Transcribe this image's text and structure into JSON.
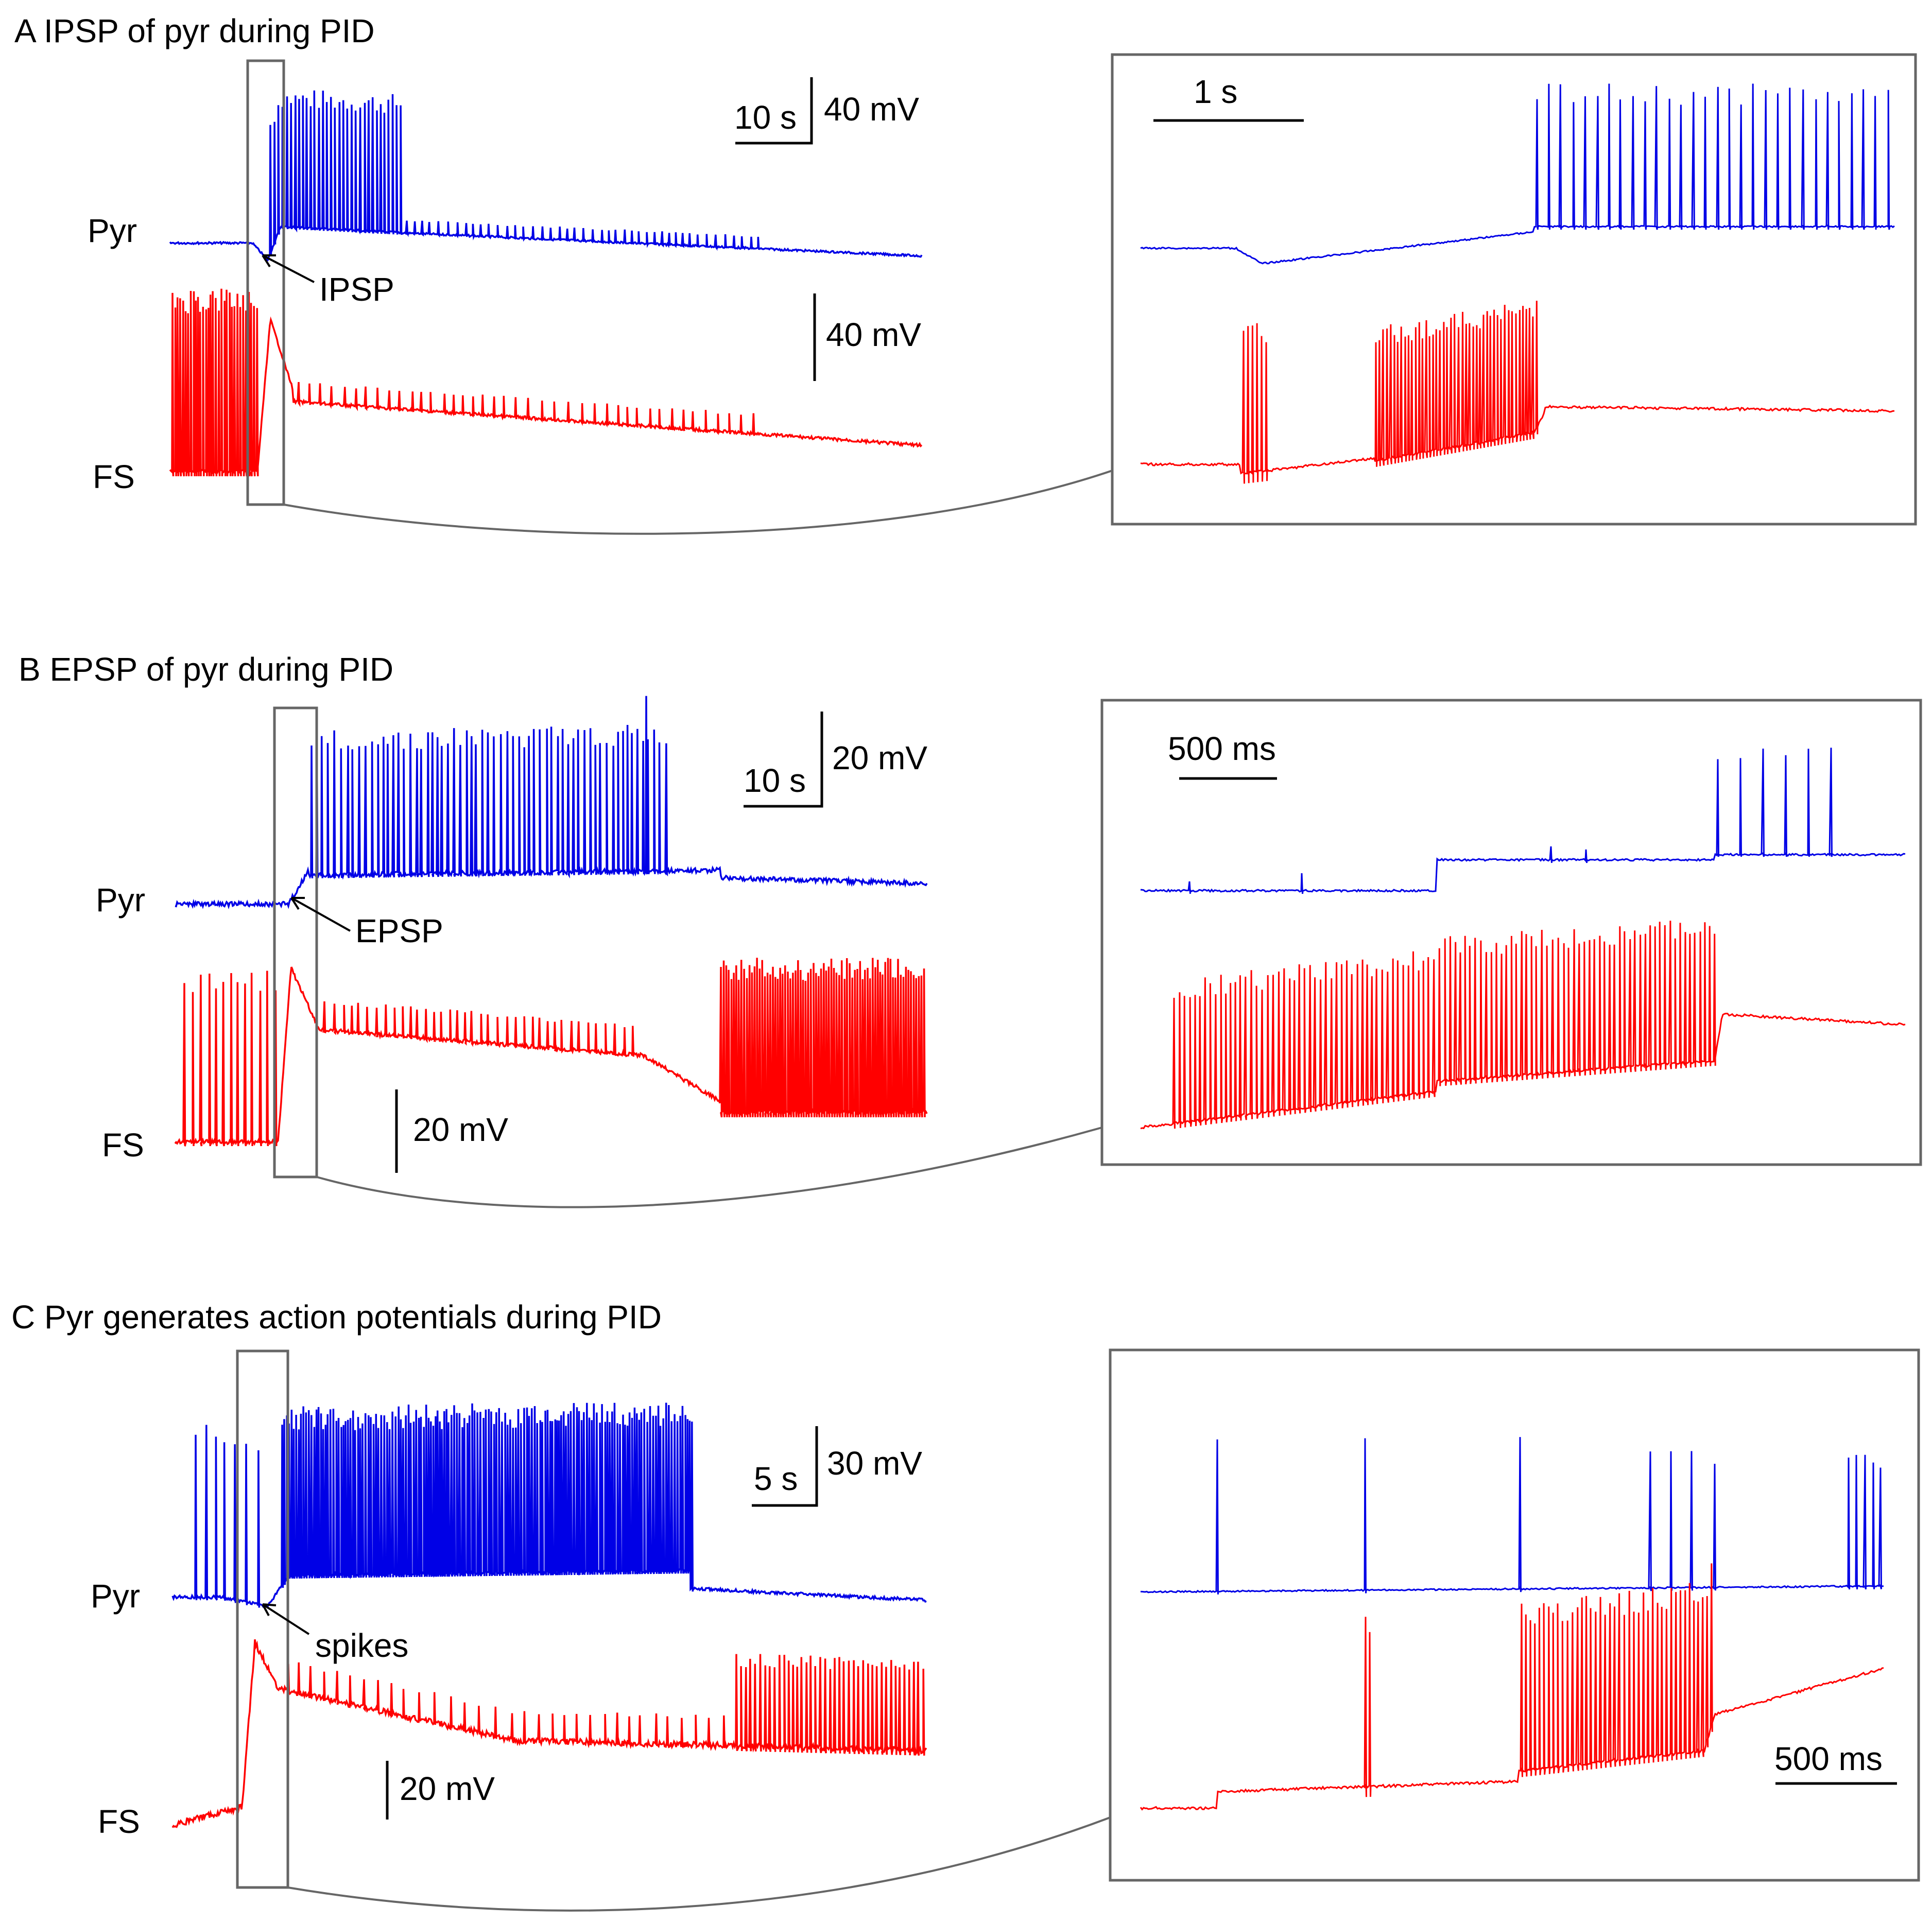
{
  "colors": {
    "pyr": "#0000e6",
    "fs": "#ff0000",
    "frame": "#666666",
    "ink": "#000000"
  },
  "panels": [
    {
      "id": "A",
      "title": "A IPSP of pyr during PID",
      "pyr_label": "Pyr",
      "fs_label": "FS",
      "annotation": "IPSP",
      "overview_scalebar": {
        "time": "10 s",
        "voltage": "40 mV"
      },
      "fs_scalebar": {
        "voltage": "40 mV"
      },
      "inset_scalebar": {
        "time": "1 s"
      }
    },
    {
      "id": "B",
      "title": "B EPSP of pyr during PID",
      "pyr_label": "Pyr",
      "fs_label": "FS",
      "annotation": "EPSP",
      "overview_scalebar": {
        "time": "10 s",
        "voltage": "20 mV"
      },
      "fs_scalebar": {
        "voltage": "20 mV"
      },
      "inset_scalebar": {
        "time": "500 ms"
      }
    },
    {
      "id": "C",
      "title": "C Pyr generates action potentials during PID",
      "pyr_label": "Pyr",
      "fs_label": "FS",
      "annotation": "spikes",
      "overview_scalebar": {
        "time": "5 s",
        "voltage": "30 mV"
      },
      "fs_scalebar": {
        "voltage": "20 mV"
      },
      "inset_scalebar": {
        "time": "500 ms"
      }
    }
  ]
}
